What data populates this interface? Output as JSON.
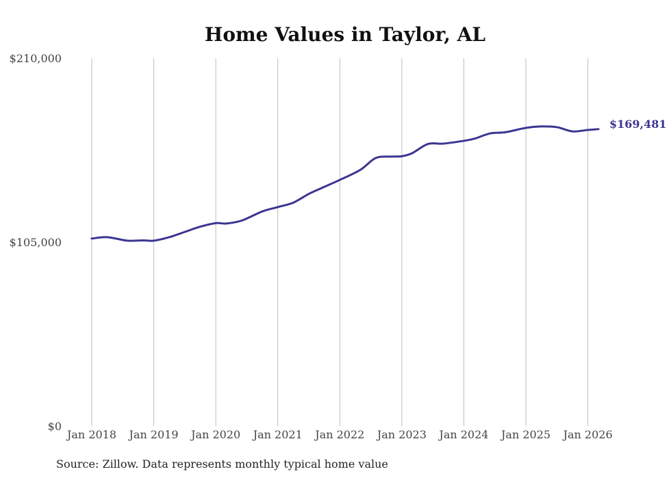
{
  "chart_data": {
    "type": "line",
    "title": "Home Values in Taylor, AL",
    "source": "Source: Zillow. Data represents monthly typical home value",
    "xlabel": "",
    "ylabel": "",
    "ylim": [
      0,
      210000
    ],
    "y_ticks": [
      {
        "value": 0,
        "label": "$0"
      },
      {
        "value": 105000,
        "label": "$105,000"
      },
      {
        "value": 210000,
        "label": "$210,000"
      }
    ],
    "x_ticks": [
      {
        "value": 2018,
        "label": "Jan 2018"
      },
      {
        "value": 2019,
        "label": "Jan 2019"
      },
      {
        "value": 2020,
        "label": "Jan 2020"
      },
      {
        "value": 2021,
        "label": "Jan 2021"
      },
      {
        "value": 2022,
        "label": "Jan 2022"
      },
      {
        "value": 2023,
        "label": "Jan 2023"
      },
      {
        "value": 2024,
        "label": "Jan 2024"
      },
      {
        "value": 2025,
        "label": "Jan 2025"
      },
      {
        "value": 2026,
        "label": "Jan 2026"
      }
    ],
    "xlim": [
      2018,
      2026.17
    ],
    "grid": "vertical",
    "line_color": "#3b3592",
    "end_label": "$169,481",
    "series": [
      {
        "name": "Typical home value",
        "x": [
          2018.0,
          2018.25,
          2018.58,
          2018.83,
          2019.0,
          2019.25,
          2019.5,
          2019.75,
          2020.0,
          2020.17,
          2020.42,
          2020.75,
          2021.0,
          2021.25,
          2021.5,
          2021.75,
          2022.0,
          2022.33,
          2022.58,
          2022.83,
          2023.0,
          2023.17,
          2023.42,
          2023.67,
          2024.0,
          2024.17,
          2024.42,
          2024.67,
          2025.0,
          2025.25,
          2025.5,
          2025.75,
          2026.0,
          2026.17
        ],
        "values": [
          107000,
          107800,
          105800,
          106000,
          105800,
          107800,
          110800,
          113800,
          115800,
          115600,
          117300,
          122500,
          125000,
          127500,
          132500,
          136500,
          140500,
          146200,
          153000,
          153800,
          154000,
          155800,
          161000,
          161200,
          162800,
          164000,
          167000,
          167700,
          170200,
          171000,
          170600,
          168200,
          169000,
          169481
        ]
      }
    ]
  }
}
